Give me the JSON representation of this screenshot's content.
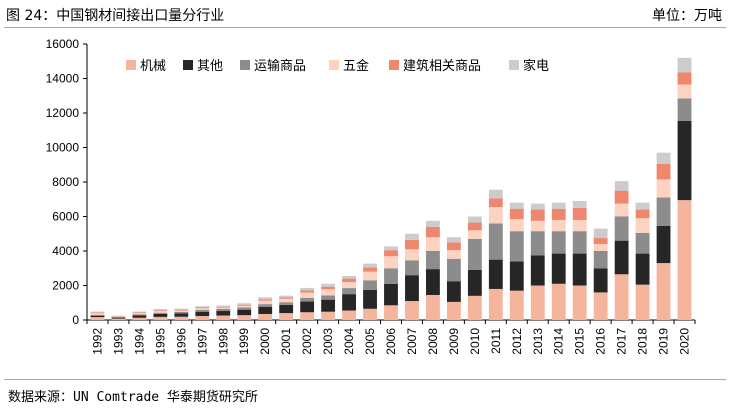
{
  "header": {
    "title": "图 24：中国钢材间接出口量分行业",
    "unit": "单位：万吨"
  },
  "source": "数据来源：UN Comtrade 华泰期货研究所",
  "chart_data": {
    "type": "bar",
    "stacked": true,
    "categories": [
      "1992",
      "1993",
      "1994",
      "1995",
      "1996",
      "1997",
      "1998",
      "1999",
      "2000",
      "2001",
      "2002",
      "2003",
      "2004",
      "2005",
      "2006",
      "2007",
      "2008",
      "2009",
      "2010",
      "2011",
      "2012",
      "2013",
      "2014",
      "2015",
      "2016",
      "2017",
      "2018",
      "2019",
      "2020"
    ],
    "ylim": [
      0,
      16000
    ],
    "yticks": [
      0,
      2000,
      4000,
      6000,
      8000,
      10000,
      12000,
      14000,
      16000
    ],
    "legend_position": "top-left",
    "grid": false,
    "series": [
      {
        "name": "机械",
        "color": "#f5b49c",
        "values": [
          170,
          80,
          130,
          180,
          190,
          230,
          260,
          280,
          350,
          400,
          450,
          480,
          550,
          650,
          850,
          1100,
          1450,
          1050,
          1400,
          1800,
          1700,
          2000,
          2100,
          2000,
          1600,
          2650,
          2050,
          3300,
          6950
        ]
      },
      {
        "name": "其他",
        "color": "#262626",
        "values": [
          80,
          60,
          130,
          170,
          200,
          250,
          260,
          320,
          420,
          480,
          620,
          700,
          950,
          1100,
          1250,
          1500,
          1500,
          1200,
          1500,
          1700,
          1700,
          1750,
          1750,
          1850,
          1400,
          1950,
          1800,
          2150,
          4600
        ]
      },
      {
        "name": "运输商品",
        "color": "#8c8c8c",
        "values": [
          40,
          30,
          60,
          70,
          80,
          100,
          120,
          130,
          150,
          150,
          220,
          250,
          350,
          550,
          900,
          850,
          1050,
          1300,
          1800,
          2100,
          1750,
          1400,
          1300,
          1300,
          1000,
          1400,
          1200,
          1650,
          1300
        ]
      },
      {
        "name": "五金",
        "color": "#fcd2c0",
        "values": [
          100,
          40,
          80,
          100,
          80,
          100,
          80,
          100,
          200,
          200,
          300,
          350,
          350,
          500,
          700,
          650,
          800,
          500,
          500,
          950,
          700,
          600,
          650,
          650,
          400,
          750,
          850,
          1050,
          800
        ]
      },
      {
        "name": "建筑相关商品",
        "color": "#ef866e",
        "values": [
          40,
          20,
          40,
          50,
          50,
          60,
          50,
          60,
          80,
          80,
          120,
          150,
          200,
          250,
          350,
          550,
          600,
          450,
          450,
          500,
          600,
          650,
          650,
          700,
          350,
          750,
          500,
          900,
          700
        ]
      },
      {
        "name": "家电",
        "color": "#cccccc",
        "values": [
          60,
          20,
          50,
          60,
          60,
          60,
          70,
          80,
          120,
          100,
          150,
          170,
          150,
          220,
          220,
          350,
          350,
          300,
          350,
          500,
          350,
          350,
          350,
          400,
          550,
          550,
          400,
          650,
          850
        ]
      }
    ]
  }
}
